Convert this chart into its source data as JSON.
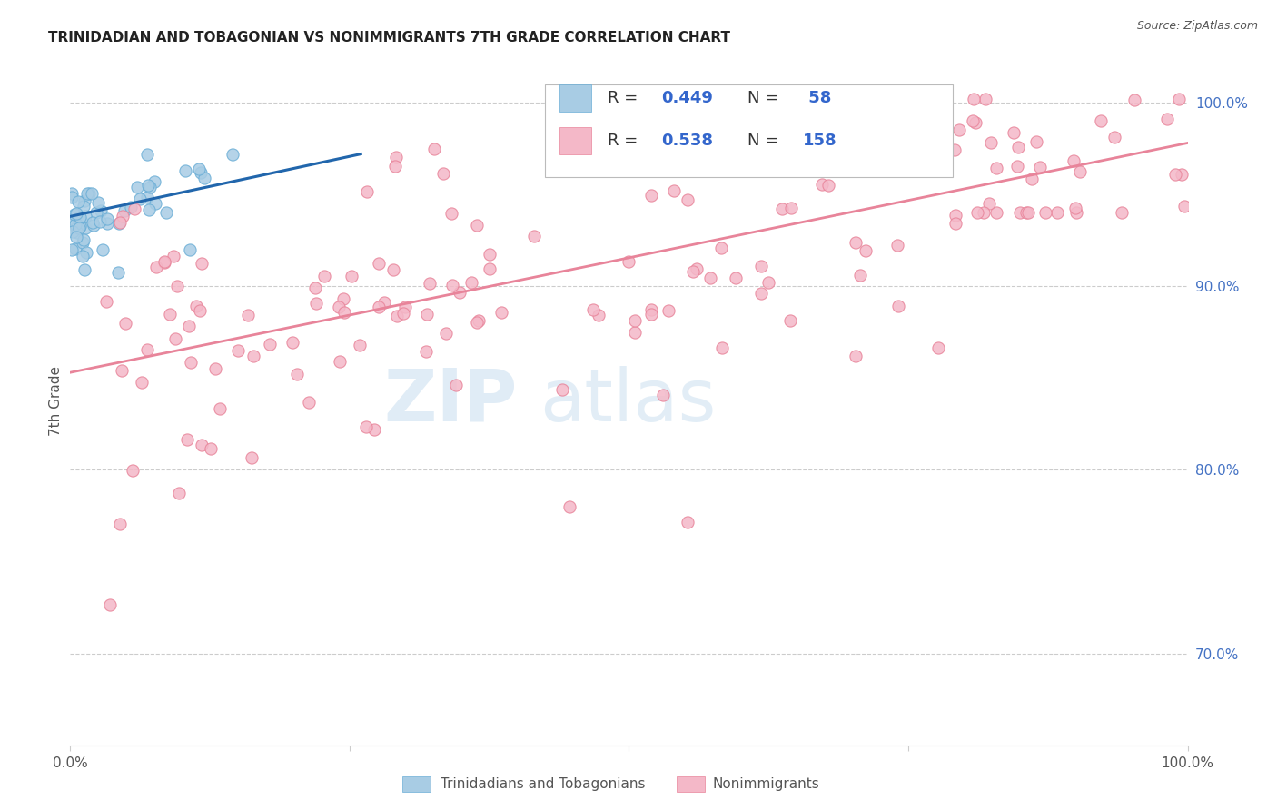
{
  "title": "TRINIDADIAN AND TOBAGONIAN VS NONIMMIGRANTS 7TH GRADE CORRELATION CHART",
  "source": "Source: ZipAtlas.com",
  "ylabel": "7th Grade",
  "blue_color": "#a8cce4",
  "blue_edge_color": "#6baed6",
  "pink_color": "#f4b8c8",
  "pink_edge_color": "#e8849a",
  "blue_line_color": "#2166ac",
  "pink_line_color": "#e8849a",
  "legend_box_color": "#a8cce4",
  "legend_pink_color": "#f4b8c8",
  "right_tick_color": "#4472c4",
  "xlim": [
    0.0,
    1.0
  ],
  "ylim": [
    0.65,
    1.025
  ],
  "yticks": [
    0.7,
    0.8,
    0.9,
    1.0
  ],
  "ytick_labels": [
    "70.0%",
    "80.0%",
    "90.0%",
    "100.0%"
  ],
  "blue_trend": [
    0.0,
    0.26,
    0.938,
    0.972
  ],
  "pink_trend": [
    0.0,
    1.0,
    0.853,
    0.978
  ]
}
